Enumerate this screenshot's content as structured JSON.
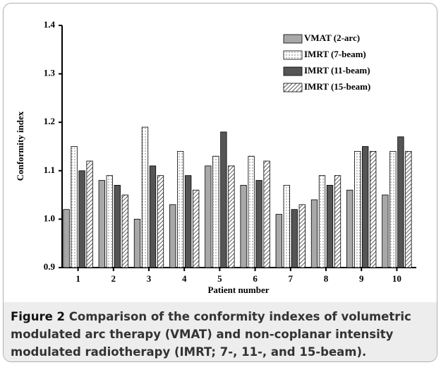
{
  "chart_data": {
    "type": "bar",
    "y_label": "Conformity index",
    "x_label": "Patient number",
    "categories": [
      "1",
      "2",
      "3",
      "4",
      "5",
      "6",
      "7",
      "8",
      "9",
      "10"
    ],
    "series": [
      {
        "name": "VMAT (2-arc)",
        "color": "#a8a8a8",
        "pattern": "solid",
        "values": [
          1.02,
          1.08,
          1.0,
          1.03,
          1.11,
          1.07,
          1.01,
          1.04,
          1.06,
          1.05
        ]
      },
      {
        "name": "IMRT (7-beam)",
        "color": "#ffffff",
        "pattern": "dots",
        "values": [
          1.15,
          1.09,
          1.19,
          1.14,
          1.13,
          1.13,
          1.07,
          1.09,
          1.14,
          1.14
        ]
      },
      {
        "name": "IMRT (11-beam)",
        "color": "#555555",
        "pattern": "solid",
        "values": [
          1.1,
          1.07,
          1.11,
          1.09,
          1.18,
          1.08,
          1.02,
          1.07,
          1.15,
          1.17
        ]
      },
      {
        "name": "IMRT (15-beam)",
        "color": "#ffffff",
        "pattern": "hatch",
        "values": [
          1.12,
          1.05,
          1.09,
          1.06,
          1.11,
          1.12,
          1.03,
          1.09,
          1.14,
          1.14
        ]
      }
    ],
    "ylim": [
      0.9,
      1.4
    ],
    "yticks": [
      0.9,
      {
        "value": 1,
        "label": "1.0"
      },
      1.1,
      1.2,
      1.3,
      1.4
    ],
    "grid": false,
    "legend": "upper right"
  },
  "caption": {
    "label": "Figure 2",
    "text": "Comparison of the conformity indexes of volumetric modulated arc therapy (VMAT) and non-coplanar intensity modulated radiotherapy (IMRT; 7-, 11-, and 15-beam)."
  }
}
